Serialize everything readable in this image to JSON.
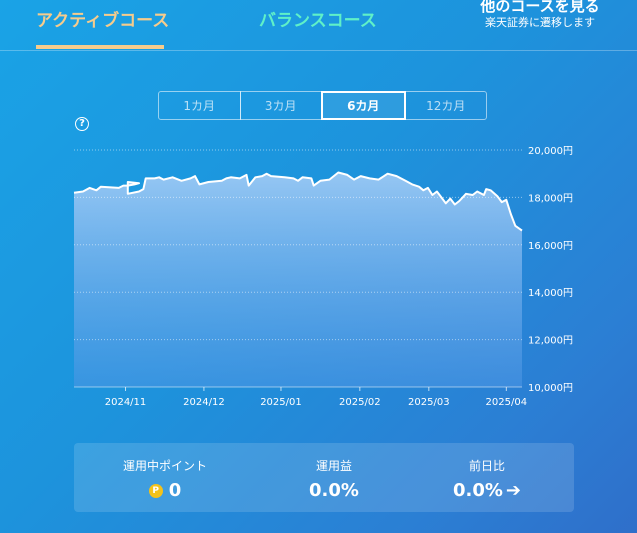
{
  "nav": {
    "active_tab": "アクティブコース",
    "balance_tab": "バランスコース",
    "other_title": "他のコースを見る",
    "other_sub": "楽天証券に遷移します"
  },
  "periods": [
    {
      "label": "1カ月",
      "active": false
    },
    {
      "label": "3カ月",
      "active": false
    },
    {
      "label": "6カ月",
      "active": true
    },
    {
      "label": "12カ月",
      "active": false
    }
  ],
  "help_icon": "?",
  "chart_data": {
    "type": "area",
    "ylim": [
      10000,
      20000
    ],
    "y_ticks": [
      {
        "value": 20000,
        "label": "20,000円"
      },
      {
        "value": 18000,
        "label": "18,000円"
      },
      {
        "value": 16000,
        "label": "16,000円"
      },
      {
        "value": 14000,
        "label": "14,000円"
      },
      {
        "value": 12000,
        "label": "12,000円"
      },
      {
        "value": 10000,
        "label": "10,000円"
      }
    ],
    "x_ticks": [
      {
        "t": 0.115,
        "label": "2024/11"
      },
      {
        "t": 0.29,
        "label": "2024/12"
      },
      {
        "t": 0.462,
        "label": "2025/01"
      },
      {
        "t": 0.638,
        "label": "2025/02"
      },
      {
        "t": 0.792,
        "label": "2025/03"
      },
      {
        "t": 0.965,
        "label": "2025/04"
      }
    ],
    "points": [
      [
        0,
        18200
      ],
      [
        0.02,
        18250
      ],
      [
        0.035,
        18400
      ],
      [
        0.05,
        18300
      ],
      [
        0.06,
        18450
      ],
      [
        0.1,
        18400
      ],
      [
        0.11,
        18500
      ],
      [
        0.12,
        18500
      ],
      [
        0.135,
        18550
      ],
      [
        0.145,
        18600
      ],
      [
        0.12,
        18650
      ],
      [
        0.12,
        18150
      ],
      [
        0.145,
        18250
      ],
      [
        0.155,
        18350
      ],
      [
        0.16,
        18800
      ],
      [
        0.18,
        18800
      ],
      [
        0.19,
        18850
      ],
      [
        0.2,
        18750
      ],
      [
        0.22,
        18850
      ],
      [
        0.24,
        18700
      ],
      [
        0.26,
        18800
      ],
      [
        0.27,
        18900
      ],
      [
        0.28,
        18550
      ],
      [
        0.3,
        18650
      ],
      [
        0.33,
        18700
      ],
      [
        0.34,
        18800
      ],
      [
        0.35,
        18850
      ],
      [
        0.37,
        18800
      ],
      [
        0.385,
        18950
      ],
      [
        0.39,
        18500
      ],
      [
        0.405,
        18850
      ],
      [
        0.42,
        18900
      ],
      [
        0.43,
        19000
      ],
      [
        0.44,
        18900
      ],
      [
        0.47,
        18850
      ],
      [
        0.49,
        18800
      ],
      [
        0.5,
        18700
      ],
      [
        0.51,
        18850
      ],
      [
        0.53,
        18800
      ],
      [
        0.535,
        18500
      ],
      [
        0.55,
        18700
      ],
      [
        0.57,
        18750
      ],
      [
        0.59,
        19050
      ],
      [
        0.61,
        18950
      ],
      [
        0.625,
        18750
      ],
      [
        0.64,
        18900
      ],
      [
        0.66,
        18800
      ],
      [
        0.68,
        18750
      ],
      [
        0.7,
        19000
      ],
      [
        0.72,
        18900
      ],
      [
        0.74,
        18700
      ],
      [
        0.755,
        18550
      ],
      [
        0.77,
        18450
      ],
      [
        0.78,
        18300
      ],
      [
        0.79,
        18400
      ],
      [
        0.8,
        18100
      ],
      [
        0.81,
        18250
      ],
      [
        0.82,
        18000
      ],
      [
        0.83,
        17750
      ],
      [
        0.84,
        17950
      ],
      [
        0.85,
        17700
      ],
      [
        0.86,
        17850
      ],
      [
        0.875,
        18150
      ],
      [
        0.89,
        18100
      ],
      [
        0.9,
        18250
      ],
      [
        0.915,
        18100
      ],
      [
        0.92,
        18350
      ],
      [
        0.93,
        18300
      ],
      [
        0.945,
        18050
      ],
      [
        0.955,
        17800
      ],
      [
        0.965,
        17900
      ],
      [
        0.975,
        17300
      ],
      [
        0.985,
        16800
      ],
      [
        1.0,
        16600
      ]
    ]
  },
  "summary": {
    "points_label": "運用中ポイント",
    "points_value": "0",
    "points_icon": "P",
    "gain_label": "運用益",
    "gain_value": "0.0%",
    "prev_label": "前日比",
    "prev_value": "0.0%"
  }
}
